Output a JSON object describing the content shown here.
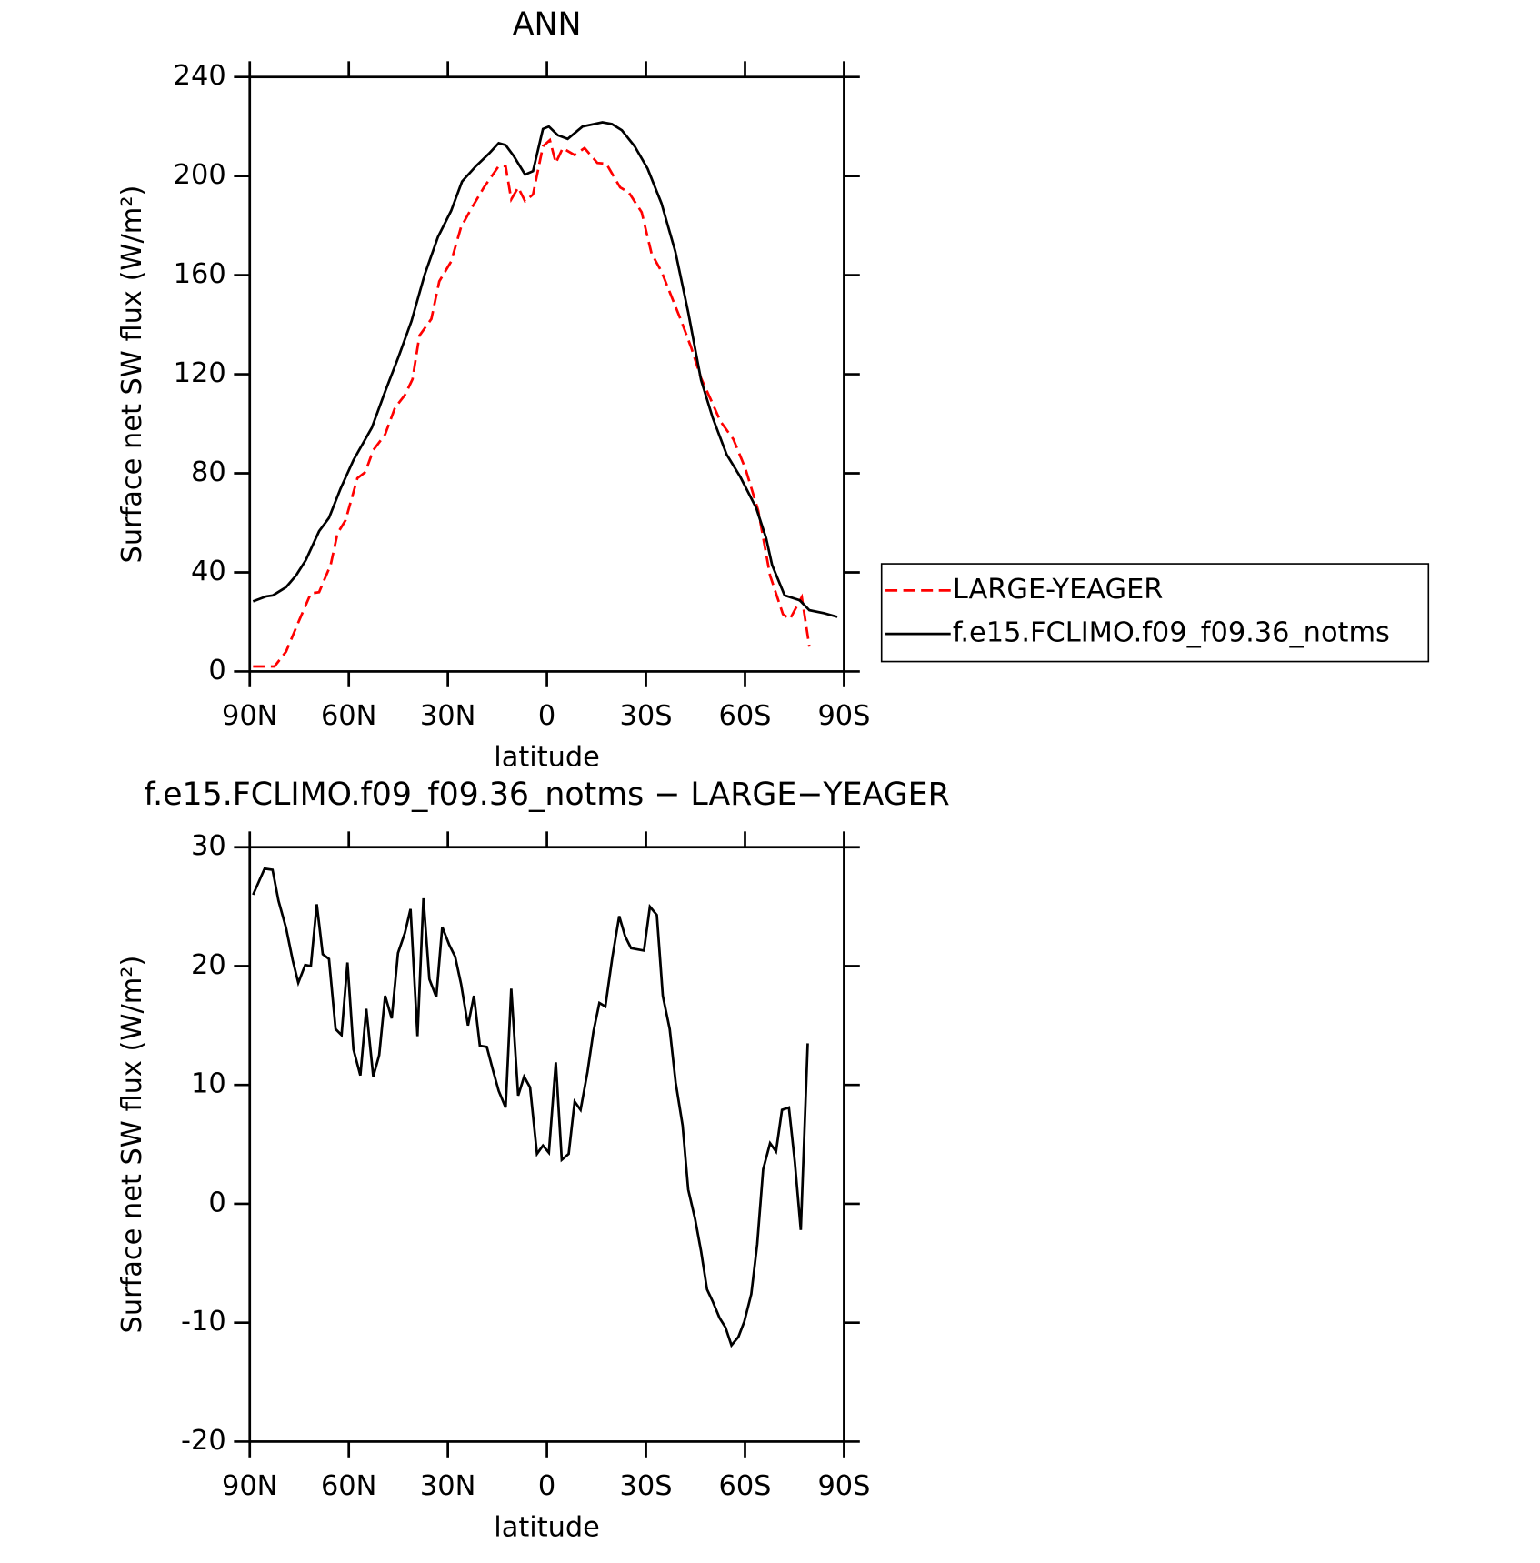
{
  "chart_data": [
    {
      "type": "line",
      "title": "ANN",
      "xlabel": "latitude",
      "ylabel": "Surface net SW flux (W/m²)",
      "xlim": [
        90,
        -90
      ],
      "xticks": [
        {
          "value": 90,
          "label": "90N"
        },
        {
          "value": 60,
          "label": "60N"
        },
        {
          "value": 30,
          "label": "30N"
        },
        0,
        {
          "value": -30,
          "label": "30S"
        },
        {
          "value": -60,
          "label": "60S"
        },
        {
          "value": -90,
          "label": "90S"
        }
      ],
      "ylim": [
        0,
        240
      ],
      "yticks": [
        0,
        40,
        80,
        120,
        160,
        200,
        240
      ],
      "grid": false,
      "legend": "right",
      "series": [
        {
          "name": "LARGE-YEAGER",
          "color": "#ff0000",
          "linestyle": "dashed",
          "x": [
            89,
            82.5,
            79,
            75,
            71.5,
            69,
            65.5,
            63.4,
            61,
            57.4,
            55,
            52.6,
            49,
            46,
            43,
            40.7,
            38.6,
            35,
            32.6,
            29,
            26,
            23,
            19.1,
            14.6,
            12.5,
            10.8,
            8.7,
            6.6,
            4.2,
            1.2,
            -0.9,
            -2.7,
            -4.8,
            -8.4,
            -11.4,
            -15.3,
            -18,
            -22.2,
            -24.8,
            -28.7,
            -31.7,
            -34.7,
            -37.7,
            -40.7,
            -43.7,
            -46.7,
            -49.7,
            -52.6,
            -56.5,
            -60.1,
            -64,
            -67.6,
            -71.5,
            -73.6,
            -77.2,
            -79.5
          ],
          "values": [
            2,
            2,
            8,
            20.7,
            31.5,
            32,
            43,
            55.8,
            61,
            78,
            80.5,
            89.3,
            95.7,
            106.5,
            111.6,
            118,
            135.6,
            142.3,
            157.5,
            165.5,
            179.4,
            186.6,
            195.4,
            204,
            204,
            190.6,
            195.4,
            189.8,
            192.6,
            212,
            214.5,
            205.3,
            211.3,
            208.5,
            211.3,
            205.3,
            205,
            195.4,
            193.4,
            185.4,
            168.7,
            161.5,
            151.5,
            141.5,
            130.8,
            118.4,
            109.6,
            100.9,
            93.7,
            82,
            65,
            38.7,
            23.1,
            21.1,
            30,
            10
          ]
        },
        {
          "name": "f.e15.FCLIMO.f09_f09.36_notms",
          "color": "#000000",
          "linestyle": "solid",
          "x": [
            89,
            85,
            83,
            79,
            76,
            73,
            69,
            66,
            62.5,
            58.6,
            53,
            49,
            45,
            41,
            37,
            33,
            29,
            25.7,
            21.5,
            17.6,
            14.6,
            12.5,
            10,
            6.6,
            4.2,
            1.2,
            -0.6,
            -3.3,
            -6.3,
            -10.8,
            -16.8,
            -19.7,
            -22.7,
            -26.6,
            -30.5,
            -34.7,
            -38.9,
            -42.8,
            -46.7,
            -50.2,
            -54.4,
            -58.6,
            -63.4,
            -66.4,
            -68.2,
            -72,
            -76.6,
            -79.5,
            -84,
            -88
          ],
          "values": [
            28.3,
            30.3,
            30.7,
            34,
            38.7,
            45,
            56.6,
            62,
            73.8,
            85.3,
            98.5,
            113,
            126.8,
            141.5,
            160.3,
            175.4,
            186,
            197.8,
            204,
            209,
            213.3,
            212.5,
            208,
            200.6,
            202,
            219,
            220,
            216.5,
            215,
            220,
            221.7,
            221,
            218.5,
            212,
            203,
            189,
            169.5,
            145,
            117.6,
            102.5,
            87.7,
            78.5,
            66,
            53.8,
            43,
            30.7,
            28.7,
            24.7,
            23.5,
            22
          ]
        }
      ]
    },
    {
      "type": "line",
      "title": "f.e15.FCLIMO.f09_f09.36_notms − LARGE−YEAGER",
      "xlabel": "latitude",
      "ylabel": "Surface net SW flux (W/m²)",
      "xlim": [
        90,
        -90
      ],
      "xticks": [
        {
          "value": 90,
          "label": "90N"
        },
        {
          "value": 60,
          "label": "60N"
        },
        {
          "value": 30,
          "label": "30N"
        },
        0,
        {
          "value": -30,
          "label": "30S"
        },
        {
          "value": -60,
          "label": "60S"
        },
        {
          "value": -90,
          "label": "90S"
        }
      ],
      "ylim": [
        -20,
        30
      ],
      "yticks": [
        -20,
        -10,
        0,
        10,
        20,
        30
      ],
      "grid": false,
      "series": [
        {
          "color": "#000000",
          "linestyle": "solid",
          "x": [
            89,
            85.5,
            83.1,
            81.3,
            79,
            77,
            75.3,
            73.2,
            71.5,
            69.7,
            67.9,
            66,
            64,
            62.2,
            60.4,
            58.6,
            56.5,
            54.7,
            52.6,
            50.8,
            49,
            47,
            45.1,
            43,
            41.3,
            39.2,
            37.4,
            35.6,
            33.5,
            31.7,
            29.6,
            27.8,
            26,
            23.9,
            22.1,
            20.3,
            18.2,
            16.4,
            14.6,
            12.5,
            10.8,
            8.7,
            6.9,
            5.1,
            3,
            1.2,
            -0.6,
            -2.7,
            -4.5,
            -6.6,
            -8.4,
            -10.2,
            -12.3,
            -14.1,
            -15.9,
            -17.7,
            -19.8,
            -21.9,
            -23.7,
            -25.5,
            -29.4,
            -31.2,
            -33.3,
            -35.1,
            -37.2,
            -39,
            -41.1,
            -42.8,
            -44.9,
            -46.7,
            -48.5,
            -50.2,
            -52.3,
            -54.1,
            -55.9,
            -58,
            -59.8,
            -61.9,
            -63.7,
            -65.5,
            -67.6,
            -69.4,
            -71.2,
            -73.3,
            -75.1,
            -76.9,
            -79
          ],
          "values": [
            26,
            28.2,
            28.1,
            25.5,
            23.2,
            20.5,
            18.6,
            20.1,
            20,
            25.2,
            21,
            20.6,
            14.7,
            14.2,
            20.3,
            13,
            10.8,
            16.4,
            10.7,
            12.5,
            17.5,
            15.6,
            21.1,
            22.8,
            24.8,
            14.1,
            25.7,
            18.9,
            17.4,
            23.3,
            21.8,
            20.8,
            18.5,
            15,
            17.5,
            13.3,
            13.2,
            11.3,
            9.5,
            8.1,
            18.1,
            9.1,
            10.7,
            9.8,
            4.2,
            4.9,
            4.3,
            11.9,
            3.7,
            4.2,
            8.6,
            7.9,
            11.1,
            14.5,
            16.9,
            16.6,
            20.7,
            24.2,
            22.5,
            21.5,
            21.3,
            25,
            24.3,
            17.5,
            14.7,
            10.2,
            6.6,
            1.2,
            -1.3,
            -4,
            -7.2,
            -8.2,
            -9.6,
            -10.4,
            -11.9,
            -11.2,
            -9.9,
            -7.6,
            -3.4,
            2.9,
            5.1,
            4.4,
            7.9,
            8.1,
            3.5,
            -2.2,
            13.5
          ]
        }
      ]
    }
  ]
}
